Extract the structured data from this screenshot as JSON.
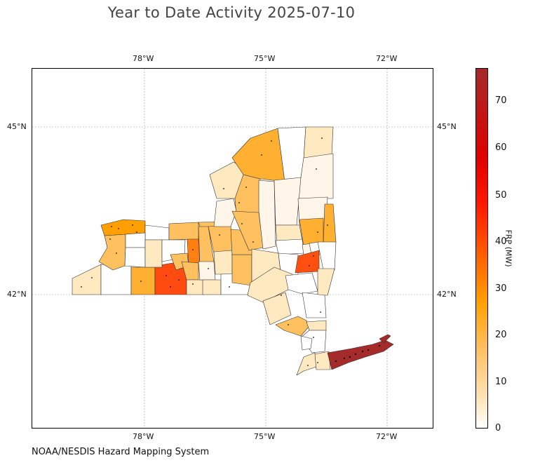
{
  "title": "Year to Date Activity 2025-07-10",
  "credit": "NOAA/NESDIS Hazard Mapping System",
  "map": {
    "region": "New York State",
    "lon_ticks": [
      "78°W",
      "75°W",
      "72°W"
    ],
    "lat_ticks": [
      "45°N",
      "42°N"
    ],
    "colormap": [
      "#ffffff",
      "#ffe9c0",
      "#ffc060",
      "#ffa000",
      "#ff6000",
      "#ff0000",
      "#a52a2a"
    ]
  },
  "colorbar": {
    "label": "FRP (MW)",
    "ticks": [
      "0",
      "10",
      "20",
      "30",
      "40",
      "50",
      "60",
      "70"
    ],
    "min": 0,
    "max": 77
  }
}
